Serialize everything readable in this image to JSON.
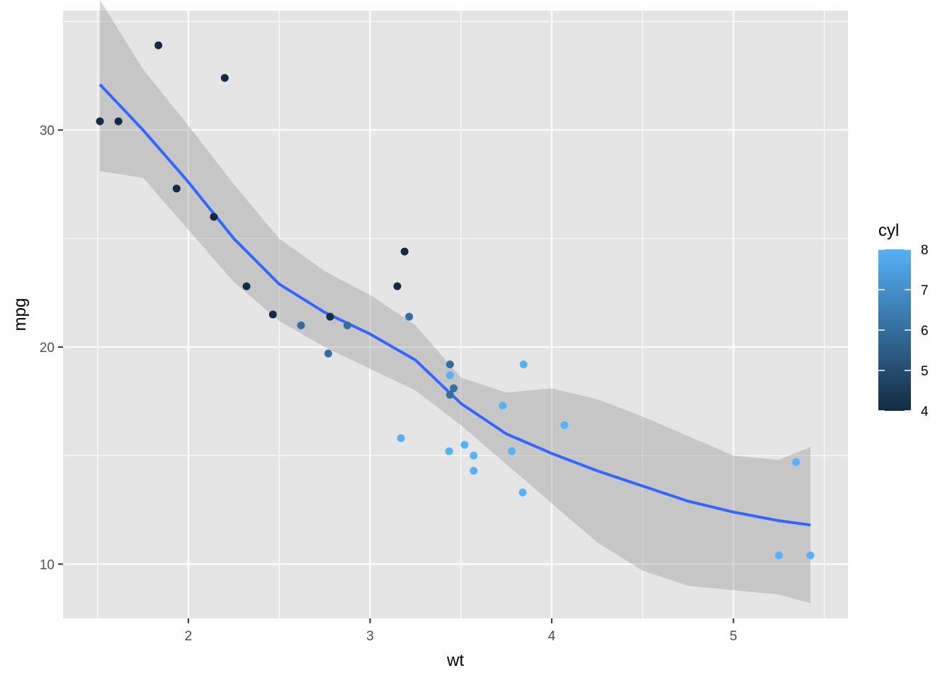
{
  "chart_data": {
    "type": "scatter",
    "title": "",
    "xlabel": "wt",
    "ylabel": "mpg",
    "xlim": [
      1.31,
      5.63
    ],
    "ylim": [
      7.5,
      35.5
    ],
    "x_ticks": [
      2,
      3,
      4,
      5
    ],
    "x_tick_labels": [
      "2",
      "3",
      "4",
      "5"
    ],
    "y_ticks": [
      10,
      20,
      30
    ],
    "y_tick_labels": [
      "10",
      "20",
      "30"
    ],
    "grid": true,
    "background": "#e5e5e5",
    "points": [
      {
        "x": 2.62,
        "y": 21.0,
        "cyl": 6
      },
      {
        "x": 2.875,
        "y": 21.0,
        "cyl": 6
      },
      {
        "x": 2.32,
        "y": 22.8,
        "cyl": 4
      },
      {
        "x": 3.215,
        "y": 21.4,
        "cyl": 6
      },
      {
        "x": 3.44,
        "y": 18.7,
        "cyl": 8
      },
      {
        "x": 3.46,
        "y": 18.1,
        "cyl": 6
      },
      {
        "x": 3.57,
        "y": 14.3,
        "cyl": 8
      },
      {
        "x": 3.19,
        "y": 24.4,
        "cyl": 4
      },
      {
        "x": 3.15,
        "y": 22.8,
        "cyl": 4
      },
      {
        "x": 3.44,
        "y": 19.2,
        "cyl": 6
      },
      {
        "x": 3.44,
        "y": 17.8,
        "cyl": 6
      },
      {
        "x": 4.07,
        "y": 16.4,
        "cyl": 8
      },
      {
        "x": 3.73,
        "y": 17.3,
        "cyl": 8
      },
      {
        "x": 3.78,
        "y": 15.2,
        "cyl": 8
      },
      {
        "x": 5.25,
        "y": 10.4,
        "cyl": 8
      },
      {
        "x": 5.424,
        "y": 10.4,
        "cyl": 8
      },
      {
        "x": 5.345,
        "y": 14.7,
        "cyl": 8
      },
      {
        "x": 2.2,
        "y": 32.4,
        "cyl": 4
      },
      {
        "x": 1.615,
        "y": 30.4,
        "cyl": 4
      },
      {
        "x": 1.835,
        "y": 33.9,
        "cyl": 4
      },
      {
        "x": 2.465,
        "y": 21.5,
        "cyl": 4
      },
      {
        "x": 3.52,
        "y": 15.5,
        "cyl": 8
      },
      {
        "x": 3.435,
        "y": 15.2,
        "cyl": 8
      },
      {
        "x": 3.84,
        "y": 13.3,
        "cyl": 8
      },
      {
        "x": 3.845,
        "y": 19.2,
        "cyl": 8
      },
      {
        "x": 1.935,
        "y": 27.3,
        "cyl": 4
      },
      {
        "x": 2.14,
        "y": 26.0,
        "cyl": 4
      },
      {
        "x": 1.513,
        "y": 30.4,
        "cyl": 4
      },
      {
        "x": 3.17,
        "y": 15.8,
        "cyl": 8
      },
      {
        "x": 2.77,
        "y": 19.7,
        "cyl": 6
      },
      {
        "x": 3.57,
        "y": 15.0,
        "cyl": 8
      },
      {
        "x": 2.78,
        "y": 21.4,
        "cyl": 4
      }
    ],
    "smooth": {
      "method": "loess",
      "color": "#3366ff",
      "band_color": "#999999",
      "x": [
        1.513,
        1.75,
        2.0,
        2.25,
        2.5,
        2.75,
        3.0,
        3.25,
        3.5,
        3.75,
        4.0,
        4.25,
        4.5,
        4.75,
        5.0,
        5.25,
        5.424
      ],
      "y": [
        32.1,
        30.0,
        27.6,
        25.0,
        22.9,
        21.6,
        20.6,
        19.4,
        17.4,
        16.0,
        15.1,
        14.3,
        13.6,
        12.9,
        12.4,
        12.0,
        11.8
      ],
      "lower": [
        28.1,
        27.8,
        25.4,
        23.0,
        21.2,
        20.0,
        19.0,
        18.0,
        16.4,
        14.6,
        12.8,
        11.0,
        9.7,
        9.0,
        8.8,
        8.6,
        8.2
      ],
      "upper": [
        36.0,
        32.8,
        30.2,
        27.5,
        25.0,
        23.5,
        22.4,
        21.0,
        18.6,
        17.9,
        18.1,
        17.6,
        16.8,
        15.9,
        15.0,
        14.8,
        15.4
      ]
    },
    "legend": {
      "title": "cyl",
      "position": "right",
      "min": 4,
      "max": 8,
      "ticks": [
        "4",
        "5",
        "6",
        "7",
        "8"
      ],
      "low_color": "#132b43",
      "high_color": "#56b1f7"
    }
  }
}
